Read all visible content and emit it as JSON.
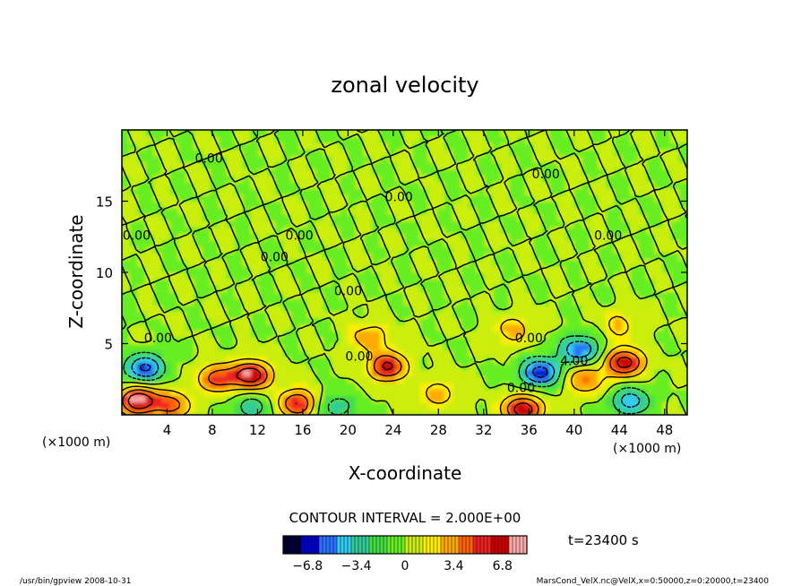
{
  "chart_data": {
    "type": "heatmap",
    "title": "zonal velocity",
    "xlabel": "X-coordinate",
    "ylabel": "Z-coordinate",
    "x_unit": "(×1000 m)",
    "z_unit": "(×1000 m)",
    "xlim": [
      0,
      50
    ],
    "ylim": [
      0,
      20
    ],
    "x_ticks": [
      4,
      8,
      12,
      16,
      20,
      24,
      28,
      32,
      36,
      40,
      44,
      48
    ],
    "y_ticks": [
      5,
      10,
      15
    ],
    "contour_interval_label": "CONTOUR INTERVAL = 2.000E+00",
    "time_label": "t=23400 s",
    "colorbar": {
      "range": [
        -8.5,
        8.5
      ],
      "ticks": [
        -6.8,
        -3.4,
        0,
        3.4,
        6.8
      ],
      "colors": [
        "#000033",
        "#0000cc",
        "#2a6fff",
        "#33ccee",
        "#33cc99",
        "#44dd44",
        "#66ee22",
        "#ccee11",
        "#ffee00",
        "#ffaa00",
        "#ff6600",
        "#ee2222",
        "#cc0000",
        "#ffaaaa"
      ]
    },
    "contour_labels": [
      {
        "x": 7.7,
        "z": 17.7,
        "text": "0.00"
      },
      {
        "x": 24.5,
        "z": 15.0,
        "text": "0.00"
      },
      {
        "x": 37.5,
        "z": 16.6,
        "text": "0.00"
      },
      {
        "x": 1.3,
        "z": 12.3,
        "text": "0.00"
      },
      {
        "x": 13.5,
        "z": 10.8,
        "text": "0.00"
      },
      {
        "x": 15.7,
        "z": 12.3,
        "text": "0.00"
      },
      {
        "x": 20.0,
        "z": 8.4,
        "text": "0.00"
      },
      {
        "x": 3.2,
        "z": 5.1,
        "text": "0.00"
      },
      {
        "x": 21.0,
        "z": 3.8,
        "text": "0.00"
      },
      {
        "x": 36.0,
        "z": 5.1,
        "text": "0.00"
      },
      {
        "x": 35.3,
        "z": 1.6,
        "text": "0.00"
      },
      {
        "x": 40.0,
        "z": 3.5,
        "text": "4.00"
      },
      {
        "x": 43.0,
        "z": 12.3,
        "text": "0.00"
      }
    ],
    "features": [
      {
        "x": 2.0,
        "z": 3.3,
        "value": -6.5
      },
      {
        "x": 8.5,
        "z": 2.6,
        "value": 5.0
      },
      {
        "x": 11.5,
        "z": 2.8,
        "value": 7.5
      },
      {
        "x": 1.5,
        "z": 1.0,
        "value": 8.0
      },
      {
        "x": 4.5,
        "z": 0.7,
        "value": 4.5
      },
      {
        "x": 15.5,
        "z": 0.8,
        "value": 6.0
      },
      {
        "x": 23.5,
        "z": 3.4,
        "value": 6.5
      },
      {
        "x": 22.0,
        "z": 5.5,
        "value": 3.5
      },
      {
        "x": 37.0,
        "z": 3.0,
        "value": -7.0
      },
      {
        "x": 40.5,
        "z": 4.6,
        "value": -6.0
      },
      {
        "x": 35.5,
        "z": 0.4,
        "value": 7.5
      },
      {
        "x": 44.5,
        "z": 3.7,
        "value": 7.0
      },
      {
        "x": 41.0,
        "z": 2.5,
        "value": 4.0
      },
      {
        "x": 45.0,
        "z": 1.0,
        "value": -5.0
      },
      {
        "x": 11.5,
        "z": 0.6,
        "value": -3.0
      },
      {
        "x": 19.0,
        "z": 0.6,
        "value": -3.0
      },
      {
        "x": 28.0,
        "z": 1.5,
        "value": 3.0
      },
      {
        "x": 34.5,
        "z": 6.0,
        "value": 3.0
      },
      {
        "x": 44.0,
        "z": 6.3,
        "value": 2.5
      }
    ]
  },
  "footer": {
    "left_text": "/usr/bin/gpview  2008-10-31",
    "right_text": "MarsCond_VelX.nc@VelX,x=0:50000,z=0:20000,t=23400"
  }
}
